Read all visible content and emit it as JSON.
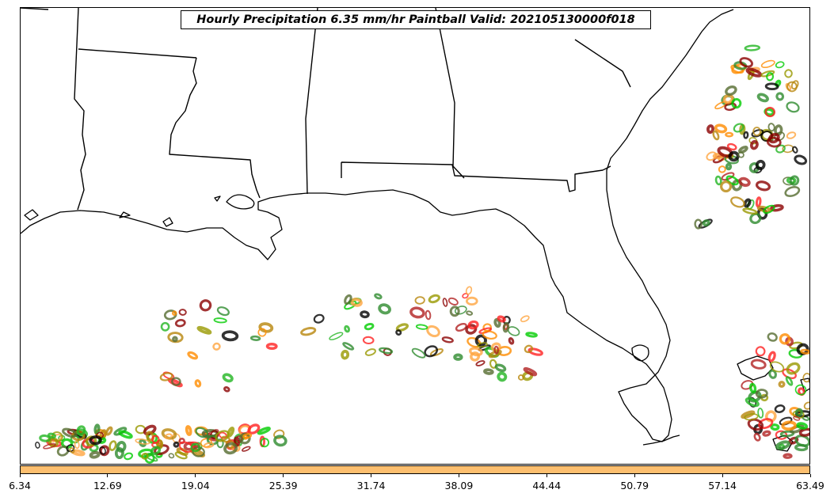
{
  "title": "Hourly Precipitation 6.35 mm/hr Paintball Valid: 202105130000f018",
  "colorbar": {
    "color": "#fdbf6f",
    "ticks": [
      "6.34",
      "12.69",
      "19.04",
      "25.39",
      "31.74",
      "38.09",
      "44.44",
      "50.79",
      "57.14",
      "63.49"
    ]
  },
  "map": {
    "region": "US Gulf Coast and Florida",
    "background": "#ffffff",
    "boundary_color": "#000000"
  },
  "paintball_colors": [
    "#000000",
    "#8b0000",
    "#b22222",
    "#ff2020",
    "#ff8c00",
    "#ffa540",
    "#22b522",
    "#00cc00",
    "#2e8b2e",
    "#999900",
    "#b8860b",
    "#556b2f"
  ]
}
